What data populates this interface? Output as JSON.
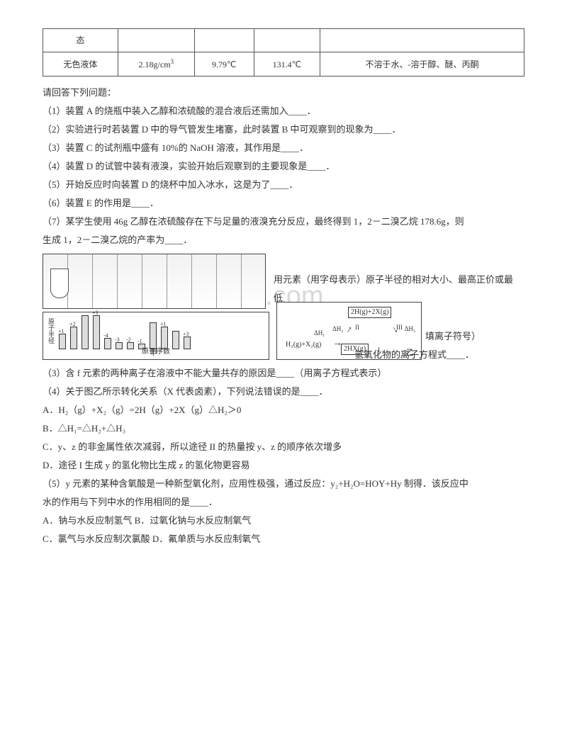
{
  "watermark": "www.weizhuannet.com",
  "table": {
    "row1": {
      "c1": "态",
      "c2": "",
      "c3": "",
      "c4": "",
      "c5": ""
    },
    "row2": {
      "c1": "无色液体",
      "c2": "2.18g/cm",
      "c2sup": "3",
      "c3": "9.79℃",
      "c4": "131.4℃",
      "c5": "不溶于水、-溶于醇、醚、丙酮"
    }
  },
  "intro": "请回答下列问题：",
  "q1": "（1）装置 A 的烧瓶中装入乙醇和浓硫酸的混合液后还需加入____．",
  "q2": "（2）实验进行时若装置 D 中的导气管发生堵塞，此时装置 B 中可观察到的现象为____．",
  "q3": "（3）装置 C 的试剂瓶中盛有 10%的 NaOH 溶液，其作用是____．",
  "q4": "（4）装置 D 的试管中装有液溴，实验开始后观察到的主要现象是____．",
  "q5": "（5）开始反应时向装置 D 的烧杯中加入冰水，这是为了____．",
  "q6": "（6）装置 E 的作用是____．",
  "q7a": "（7）某学生使用 46g 乙醇在浓硫酸存在下与足量的液溴充分反应，最终得到 1，2－二溴乙烷 178.6g，则",
  "q7b": "生成 1，2－二溴乙烷的产率为____．",
  "fig": {
    "side1": "用元素（用字母表示）原子半径的相对大小、最高正价或最低",
    "side2a": "填离子符号）",
    "side2b": "氢氧化物的离子方程式____．",
    "bars_heights": [
      22,
      32,
      48,
      48,
      16,
      10,
      10,
      8,
      38,
      32,
      26,
      18
    ],
    "bars_labels": [
      "+1",
      "+2",
      "",
      "+3",
      "-4",
      "-3",
      "-2",
      "-1",
      "",
      "+1",
      "",
      "+3"
    ],
    "yaxis": "原子半径",
    "xaxis": "原子序数",
    "jia": "甲",
    "yi": "乙",
    "cycle": {
      "top": "2H(g)+2X(g)",
      "bottom_left": "H₂(g)+X₂(g)",
      "bottom_right": "2HX(g)",
      "dh1": "ΔH₁",
      "dh2": "ΔH₂",
      "dh3": "ΔH₃",
      "r1": "I",
      "r2": "II",
      "r3": "III"
    }
  },
  "q3b": "（3）含 f 元素的两种离子在溶液中不能大量共存的原因是____（用离子方程式表示）",
  "q4b": "（4）关于图乙所示转化关系（X 代表卤素），下列说法错误的是____．",
  "optA_pre": "A．H₂（g）+X₂（g）=2H（g）+2X（g）△H₂＞0",
  "optB": "B．△H₁=△H₂+△H₃",
  "optC": "C．y、z 的非金属性依次减弱，所以途径 II 的热量按 y、z 的顺序依次增多",
  "optD": "D．途径 I 生成 y 的氢化物比生成 z 的氢化物更容易",
  "q5a": "（5）y 元素的某种含氧酸是一种新型氧化剂，应用性极强，通过反应：y₂+H₂O=HOY+Hy 制得．该反应中",
  "q5b": "水的作用与下列中水的作用相同的是____．",
  "optA2": "A．钠与水反应制氢气    B．过氧化钠与水反应制氧气",
  "optC2": "C．氯气与水反应制次氯酸    D．氟单质与水反应制氧气"
}
